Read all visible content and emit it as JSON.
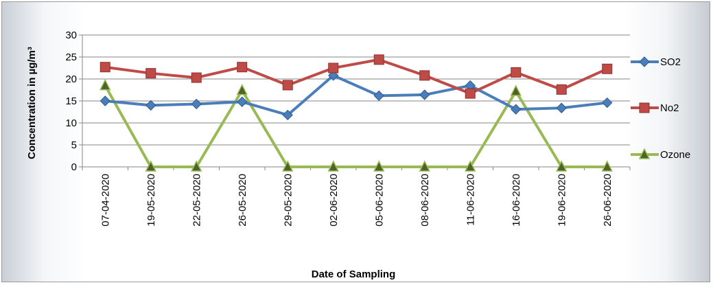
{
  "chart_data": {
    "type": "line",
    "title": "",
    "xlabel": "Date of Sampling",
    "ylabel": "Concentration in µg/m³",
    "ylim": [
      0,
      30
    ],
    "yticks": [
      0,
      5,
      10,
      15,
      20,
      25,
      30
    ],
    "grid": true,
    "legend_position": "right",
    "categories": [
      "07-04-2020",
      "19-05-2020",
      "22-05-2020",
      "26-05-2020",
      "29-05-2020",
      "02-06-2020",
      "05-06-2020",
      "08-06-2020",
      "11-06-2020",
      "16-06-2020",
      "19-06-2020",
      "26-06-2020"
    ],
    "series": [
      {
        "name": "SO2",
        "color": "#4a7ebb",
        "marker": "diamond",
        "values": [
          15,
          14,
          14.3,
          14.8,
          11.8,
          20.8,
          16.2,
          16.4,
          18.5,
          13.1,
          13.4,
          14.6
        ]
      },
      {
        "name": "No2",
        "color": "#be4b48",
        "marker": "square",
        "values": [
          22.7,
          21.3,
          20.3,
          22.7,
          18.6,
          22.5,
          24.4,
          20.8,
          16.7,
          21.5,
          17.6,
          22.3
        ]
      },
      {
        "name": "Ozone",
        "color": "#98b954",
        "marker": "triangle",
        "values": [
          18.5,
          0,
          0,
          17.4,
          0,
          0,
          0,
          0,
          0,
          17.2,
          0,
          0
        ]
      }
    ]
  }
}
